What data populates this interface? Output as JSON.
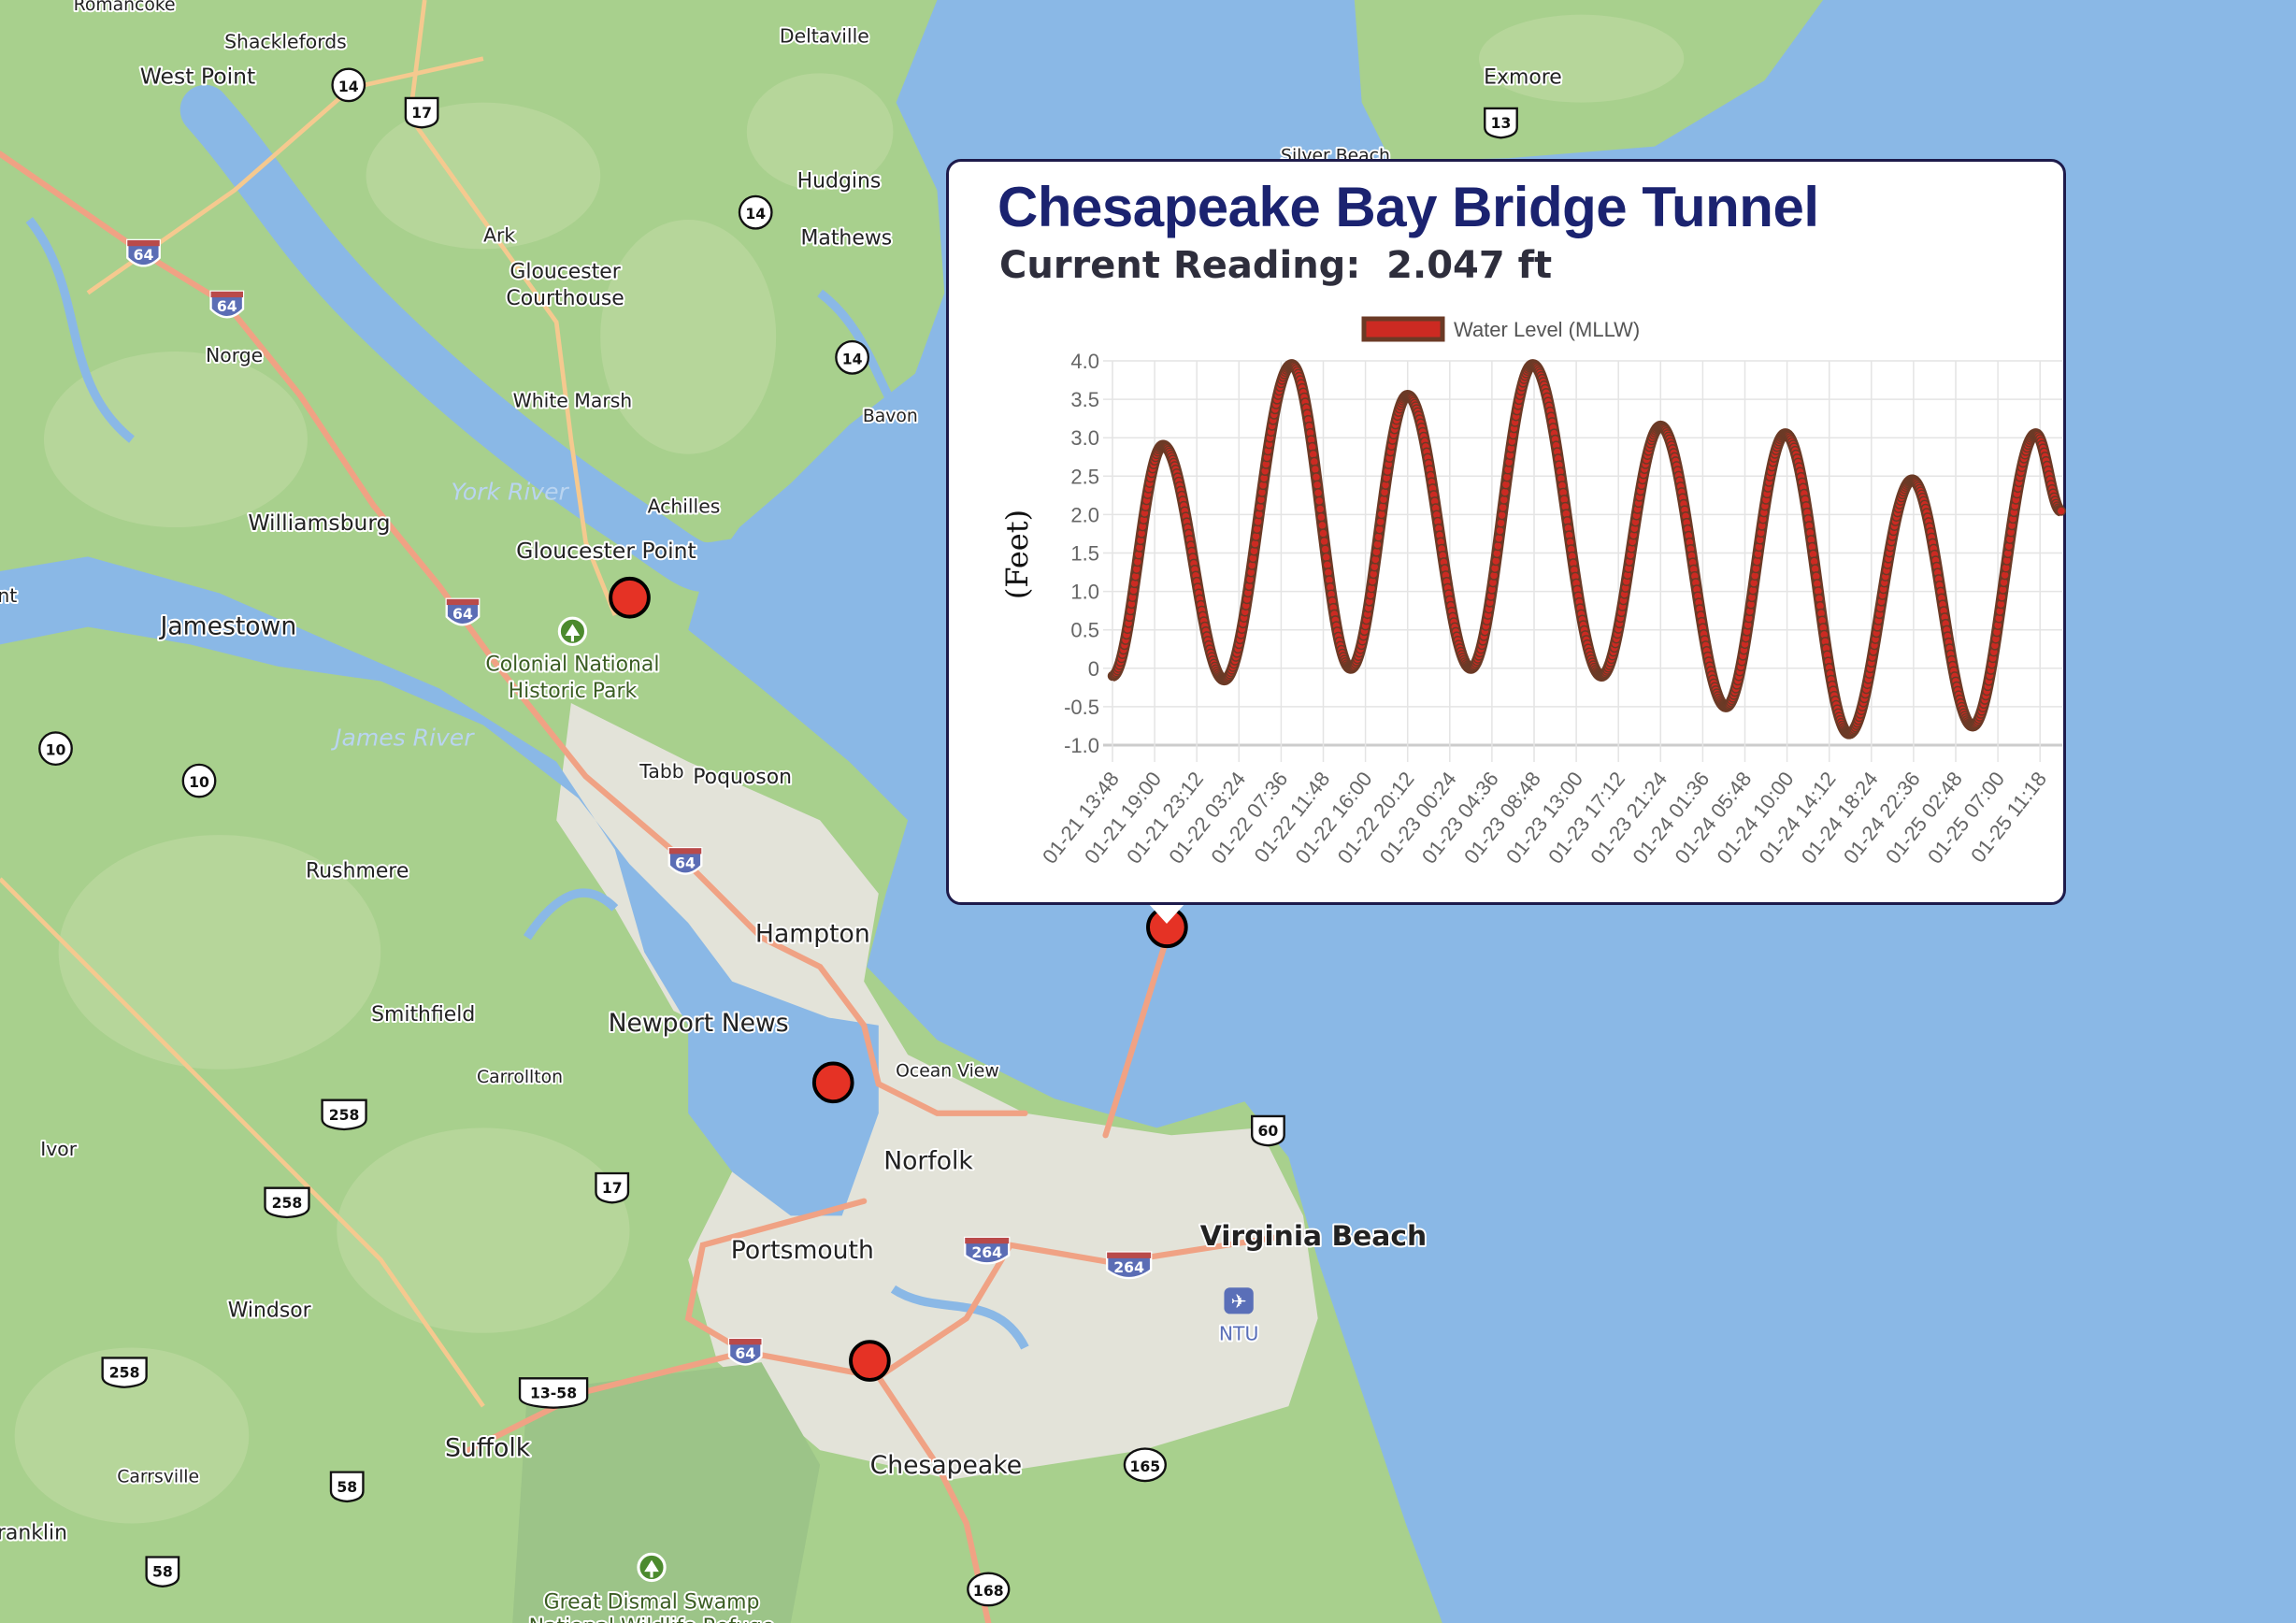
{
  "map": {
    "colors": {
      "water": "#8ab8e6",
      "land": "#a8d08d",
      "urban": "#e3e3d9",
      "road": "#f0a284",
      "marker": "#e53225"
    },
    "labels": [
      {
        "text": "Romancoke",
        "kind": "town"
      },
      {
        "text": "Shacklefords",
        "kind": "town"
      },
      {
        "text": "West Point",
        "kind": "city"
      },
      {
        "text": "Deltaville",
        "kind": "town"
      },
      {
        "text": "Exmore",
        "kind": "city"
      },
      {
        "text": "Silver Beach",
        "kind": "town"
      },
      {
        "text": "Hudgins",
        "kind": "city"
      },
      {
        "text": "Mathews",
        "kind": "city"
      },
      {
        "text": "Ark",
        "kind": "town"
      },
      {
        "text": "Gloucester",
        "kind": "city"
      },
      {
        "text": "Courthouse",
        "kind": "city"
      },
      {
        "text": "Norge",
        "kind": "town"
      },
      {
        "text": "White Marsh",
        "kind": "town"
      },
      {
        "text": "Bavon",
        "kind": "town"
      },
      {
        "text": "York River",
        "kind": "water"
      },
      {
        "text": "Achilles",
        "kind": "town"
      },
      {
        "text": "Williamsburg",
        "kind": "city"
      },
      {
        "text": "Gloucester Point",
        "kind": "city"
      },
      {
        "text": "nt",
        "kind": "town"
      },
      {
        "text": "Jamestown",
        "kind": "major"
      },
      {
        "text": "Colonial National",
        "kind": "park"
      },
      {
        "text": "Historic Park",
        "kind": "park"
      },
      {
        "text": "James River",
        "kind": "water"
      },
      {
        "text": "Tabb",
        "kind": "town"
      },
      {
        "text": "Poquoson",
        "kind": "city"
      },
      {
        "text": "Rushmere",
        "kind": "city"
      },
      {
        "text": "Hampton",
        "kind": "major"
      },
      {
        "text": "Smithfield",
        "kind": "city"
      },
      {
        "text": "Newport News",
        "kind": "major"
      },
      {
        "text": "Carrollton",
        "kind": "town"
      },
      {
        "text": "Ocean View",
        "kind": "town"
      },
      {
        "text": "Ivor",
        "kind": "town"
      },
      {
        "text": "Norfolk",
        "kind": "major"
      },
      {
        "text": "Portsmouth",
        "kind": "major"
      },
      {
        "text": "Virginia Beach",
        "kind": "capital"
      },
      {
        "text": "NTU",
        "kind": "airport"
      },
      {
        "text": "Windsor",
        "kind": "city"
      },
      {
        "text": "Suffolk",
        "kind": "major"
      },
      {
        "text": "Chesapeake",
        "kind": "major"
      },
      {
        "text": "Carrsville",
        "kind": "town"
      },
      {
        "text": "ranklin",
        "kind": "city"
      },
      {
        "text": "Great Dismal Swamp",
        "kind": "park"
      },
      {
        "text": "National Wildlife Refuge",
        "kind": "park"
      }
    ],
    "shields": [
      {
        "type": "interstate",
        "num": "64"
      },
      {
        "type": "interstate",
        "num": "64"
      },
      {
        "type": "interstate",
        "num": "64"
      },
      {
        "type": "interstate",
        "num": "64"
      },
      {
        "type": "interstate",
        "num": "64"
      },
      {
        "type": "interstate",
        "num": "264"
      },
      {
        "type": "interstate",
        "num": "264"
      },
      {
        "type": "us",
        "num": "17"
      },
      {
        "type": "us",
        "num": "17"
      },
      {
        "type": "us",
        "num": "258"
      },
      {
        "type": "us",
        "num": "258"
      },
      {
        "type": "us",
        "num": "258"
      },
      {
        "type": "us",
        "num": "13"
      },
      {
        "type": "us",
        "num": "60"
      },
      {
        "type": "us",
        "num": "58"
      },
      {
        "type": "us",
        "num": "58"
      },
      {
        "type": "us",
        "num": "13-58"
      },
      {
        "type": "state",
        "num": "14"
      },
      {
        "type": "state",
        "num": "14"
      },
      {
        "type": "state",
        "num": "14"
      },
      {
        "type": "state",
        "num": "10"
      },
      {
        "type": "state",
        "num": "10"
      },
      {
        "type": "state",
        "num": "165"
      },
      {
        "type": "state",
        "num": "168"
      }
    ],
    "stations": [
      "station-marker",
      "station-marker",
      "station-marker",
      "station-marker-selected"
    ]
  },
  "popup": {
    "title": "Chesapeake Bay Bridge Tunnel",
    "reading_label": "Current Reading:",
    "reading_value": "2.047 ft"
  },
  "chart_data": {
    "type": "scatter",
    "title": "Chesapeake Bay Bridge Tunnel",
    "legend": [
      {
        "name": "Water Level (MLLW)",
        "fill": "#cc2a22",
        "border": "#6b3a26"
      }
    ],
    "legend_position": "top",
    "ylabel": "(Feet)",
    "xlabel": "",
    "ylim": [
      -1.0,
      4.0
    ],
    "yticks": [
      "4.0",
      "3.5",
      "3.0",
      "2.5",
      "2.0",
      "1.5",
      "1.0",
      "0.5",
      "0",
      "-0.5",
      "-1.0"
    ],
    "xticks": [
      "01-21 13:48",
      "01-21 19:00",
      "01-21 23:12",
      "01-22 03:24",
      "01-22 07:36",
      "01-22 11:48",
      "01-22 16:00",
      "01-22 20:12",
      "01-23 00:24",
      "01-23 04:36",
      "01-23 08:48",
      "01-23 13:00",
      "01-23 17:12",
      "01-23 21:24",
      "01-24 01:36",
      "01-24 05:48",
      "01-24 10:00",
      "01-24 14:12",
      "01-24 18:24",
      "01-24 22:36",
      "01-25 02:48",
      "01-25 07:00",
      "01-25 11:18"
    ],
    "grid": true,
    "sample_interval_minutes": 6,
    "series": [
      {
        "name": "Water Level (MLLW)",
        "extrema": [
          {
            "x": "01-21 13:48",
            "y": -0.1
          },
          {
            "x": "01-21 18:50",
            "y": 2.9
          },
          {
            "x": "01-22 00:56",
            "y": -0.15
          },
          {
            "x": "01-22 07:39",
            "y": 3.95
          },
          {
            "x": "01-22 13:32",
            "y": 0.0
          },
          {
            "x": "01-22 19:12",
            "y": 3.55
          },
          {
            "x": "01-23 01:30",
            "y": 0.0
          },
          {
            "x": "01-23 07:40",
            "y": 3.95
          },
          {
            "x": "01-23 14:31",
            "y": -0.1
          },
          {
            "x": "01-23 20:24",
            "y": 3.15
          },
          {
            "x": "01-24 02:55",
            "y": -0.5
          },
          {
            "x": "01-24 08:50",
            "y": 3.05
          },
          {
            "x": "01-24 15:10",
            "y": -0.85
          },
          {
            "x": "01-24 21:28",
            "y": 2.45
          },
          {
            "x": "01-25 03:29",
            "y": -0.75
          },
          {
            "x": "01-25 09:47",
            "y": 3.05
          },
          {
            "x": "01-25 12:18",
            "y": 2.047
          }
        ]
      }
    ]
  }
}
